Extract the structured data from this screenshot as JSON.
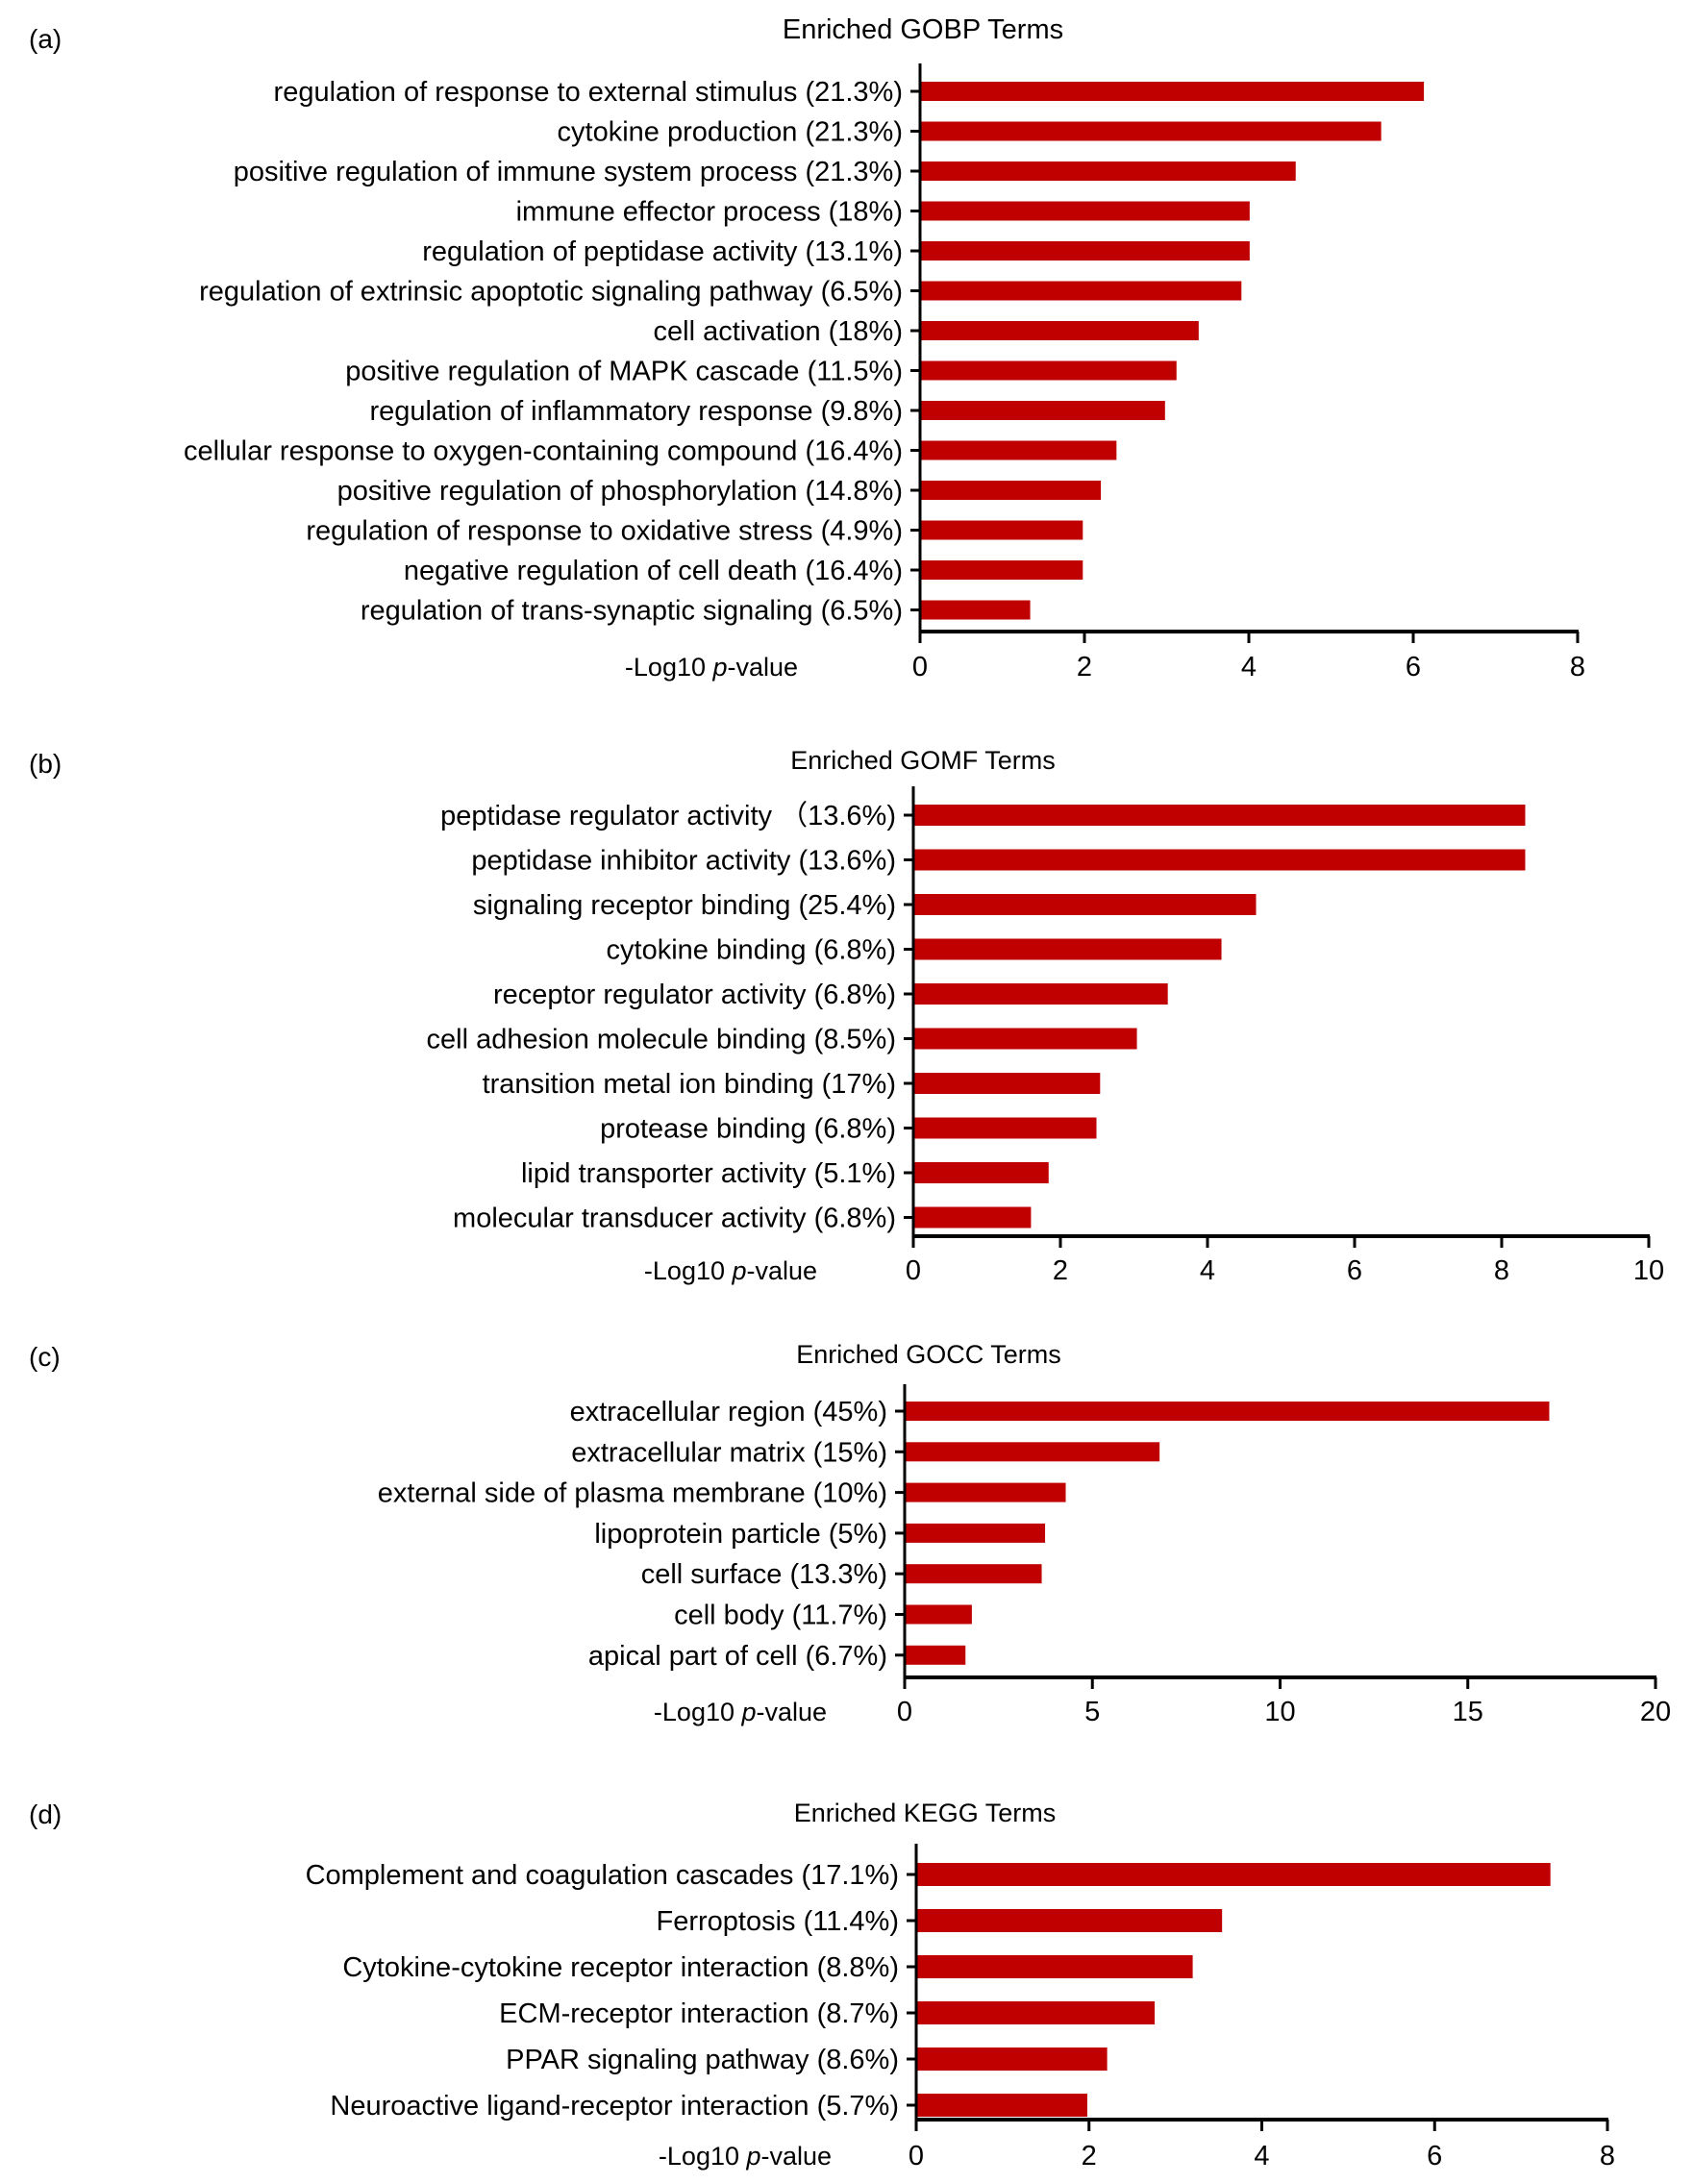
{
  "chart_data": [
    {
      "panel_label": "(a)",
      "type": "bar",
      "orientation": "horizontal",
      "title": "Enriched GOBP Terms",
      "xlabel": "-Log10 p-value",
      "xlabel_parts": [
        "-Log10 ",
        "p",
        "-value"
      ],
      "xlim": [
        0,
        8
      ],
      "xticks": [
        0,
        2,
        4,
        6,
        8
      ],
      "bar_color": "#c00000",
      "categories": [
        "regulation of response to external stimulus (21.3%)",
        "cytokine production (21.3%)",
        "positive regulation of immune system process (21.3%)",
        "immune effector process (18%)",
        "regulation of peptidase activity (13.1%)",
        "regulation of extrinsic apoptotic signaling pathway (6.5%)",
        "cell activation (18%)",
        "positive regulation of MAPK cascade (11.5%)",
        "regulation of inflammatory response (9.8%)",
        "cellular response to oxygen-containing compound (16.4%)",
        "positive regulation of phosphorylation (14.8%)",
        "regulation of response to oxidative stress (4.9%)",
        "negative regulation of cell death (16.4%)",
        "regulation of trans-synaptic signaling (6.5%)"
      ],
      "values": [
        6.13,
        5.61,
        4.57,
        4.01,
        4.01,
        3.91,
        3.39,
        3.12,
        2.98,
        2.39,
        2.2,
        1.98,
        1.98,
        1.34
      ]
    },
    {
      "panel_label": "(b)",
      "type": "bar",
      "orientation": "horizontal",
      "title": "Enriched GOMF Terms",
      "xlabel": "-Log10 p-value",
      "xlabel_parts": [
        "-Log10 ",
        "p",
        "-value"
      ],
      "xlim": [
        0,
        10
      ],
      "xticks": [
        0,
        2,
        4,
        6,
        8,
        10
      ],
      "bar_color": "#c00000",
      "categories": [
        "peptidase regulator activity （13.6%)",
        "peptidase inhibitor activity (13.6%)",
        "signaling receptor binding (25.4%)",
        "cytokine binding (6.8%)",
        "receptor regulator activity (6.8%)",
        "cell adhesion molecule binding (8.5%)",
        "transition metal ion binding (17%)",
        "protease binding (6.8%)",
        "lipid transporter activity (5.1%)",
        "molecular transducer activity (6.8%)"
      ],
      "values": [
        8.32,
        8.32,
        4.66,
        4.19,
        3.46,
        3.04,
        2.54,
        2.49,
        1.84,
        1.6
      ]
    },
    {
      "panel_label": "(c)",
      "type": "bar",
      "orientation": "horizontal",
      "title": "Enriched GOCC Terms",
      "xlabel": "-Log10 p-value",
      "xlabel_parts": [
        "-Log10 ",
        "p",
        "-value"
      ],
      "xlim": [
        0,
        20
      ],
      "xticks": [
        0,
        5,
        10,
        15,
        20
      ],
      "bar_color": "#c00000",
      "categories": [
        "extracellular region (45%)",
        "extracellular matrix (15%)",
        "external side of plasma membrane (10%)",
        "lipoprotein particle (5%)",
        "cell surface (13.3%)",
        "cell body (11.7%)",
        "apical part of cell (6.7%)"
      ],
      "values": [
        17.17,
        6.79,
        4.29,
        3.74,
        3.65,
        1.79,
        1.62
      ]
    },
    {
      "panel_label": "(d)",
      "type": "bar",
      "orientation": "horizontal",
      "title": "Enriched KEGG Terms",
      "xlabel": "-Log10 p-value",
      "xlabel_parts": [
        "-Log10 ",
        "p",
        "-value"
      ],
      "xlim": [
        0,
        8
      ],
      "xticks": [
        0,
        2,
        4,
        6,
        8
      ],
      "bar_color": "#c00000",
      "categories": [
        "Complement and coagulation cascades (17.1%)",
        "Ferroptosis (11.4%)",
        "Cytokine-cytokine receptor interaction (8.8%)",
        "ECM-receptor interaction (8.7%)",
        "PPAR signaling pathway (8.6%)",
        "Neuroactive ligand-receptor interaction (5.7%)"
      ],
      "values": [
        7.34,
        3.54,
        3.2,
        2.76,
        2.21,
        1.98
      ]
    }
  ]
}
